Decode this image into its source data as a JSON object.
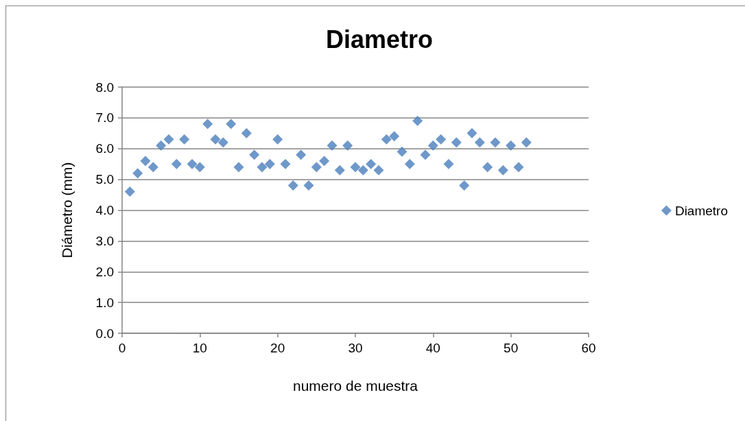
{
  "chart_data": {
    "type": "scatter",
    "title": "Diametro",
    "xlabel": "numero de muestra",
    "ylabel": "Diámetro (mm)",
    "x": [
      1,
      2,
      3,
      4,
      5,
      6,
      7,
      8,
      9,
      10,
      11,
      12,
      13,
      14,
      15,
      16,
      17,
      18,
      19,
      20,
      21,
      22,
      23,
      24,
      25,
      26,
      27,
      28,
      29,
      30,
      31,
      32,
      33,
      34,
      35,
      36,
      37,
      38,
      39,
      40,
      41,
      42,
      43,
      44,
      45,
      46,
      47,
      48,
      49,
      50,
      51,
      52
    ],
    "series": [
      {
        "name": "Diametro",
        "color": "#4a7ebb",
        "values": [
          4.6,
          5.2,
          5.6,
          5.4,
          6.1,
          6.3,
          5.5,
          6.3,
          5.5,
          5.4,
          6.8,
          6.3,
          6.2,
          6.8,
          5.4,
          6.5,
          5.8,
          5.4,
          5.5,
          6.3,
          5.5,
          4.8,
          5.8,
          4.8,
          5.4,
          5.6,
          6.1,
          5.3,
          6.1,
          5.4,
          5.3,
          5.5,
          5.3,
          6.3,
          6.4,
          5.9,
          5.5,
          6.9,
          5.8,
          6.1,
          6.3,
          5.5,
          6.2,
          4.8,
          6.5,
          6.2,
          5.4,
          6.2,
          5.3,
          6.1,
          5.4,
          6.2
        ]
      }
    ],
    "xlim": [
      0,
      60
    ],
    "xticks": [
      0,
      10,
      20,
      30,
      40,
      50,
      60
    ],
    "ylim": [
      0,
      8
    ],
    "yticks": [
      {
        "value": 0,
        "label": "0.0"
      },
      {
        "value": 1,
        "label": "1.0"
      },
      {
        "value": 2,
        "label": "2.0"
      },
      {
        "value": 3,
        "label": "3.0"
      },
      {
        "value": 4,
        "label": "4.0"
      },
      {
        "value": 5,
        "label": "5.0"
      },
      {
        "value": 6,
        "label": "6.0"
      },
      {
        "value": 7,
        "label": "7.0"
      },
      {
        "value": 8,
        "label": "8.0"
      }
    ],
    "grid": "y",
    "legend": "right",
    "marker": "diamond"
  }
}
